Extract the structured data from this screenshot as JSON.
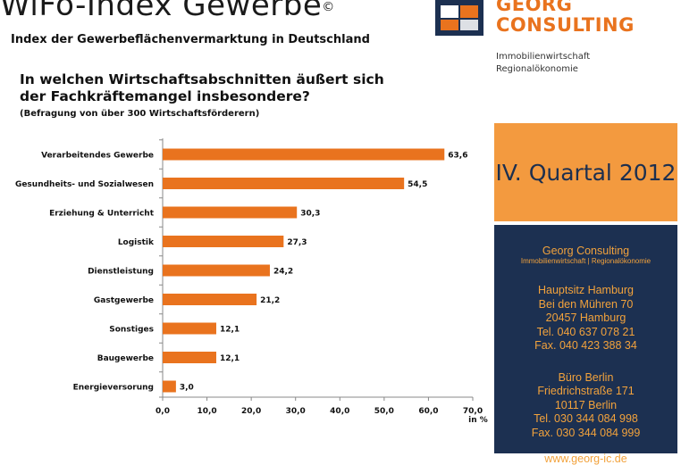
{
  "header": {
    "title": "WiFö-Index Gewerbe",
    "title_mark": "©",
    "subtitle": "Index der Gewerbeflächenvermarktung in Deutschland"
  },
  "logo": {
    "line1": "GEORG",
    "line2": "CONSULTING",
    "sub1": "Immobilienwirtschaft",
    "sub2": "Regionalökonomie"
  },
  "question": {
    "text": "In welchen Wirtschaftsabschnitten  äußert sich der Fachkräftemangel insbesondere?",
    "note": "(Befragung von über 300 Wirtschaftsförderern)"
  },
  "quarter": "IV. Quartal 2012",
  "contact": {
    "company": "Georg Consulting",
    "tagline": "Immobilienwirtschaft | Regionalökonomie",
    "office1": {
      "name": "Hauptsitz Hamburg",
      "street": "Bei den Mühren 70",
      "city": "20457 Hamburg",
      "phone": "Tel. 040 637 078 21",
      "fax": "Fax. 040 423 388 34"
    },
    "office2": {
      "name": "Büro Berlin",
      "street": "Friedrichstraße 171",
      "city": "10117 Berlin",
      "phone": "Tel. 030 344 084 998",
      "fax": "Fax. 030 344 084 999"
    },
    "web": "www.georg-ic.de"
  },
  "colors": {
    "bar": "#e9731e",
    "quarter_bg": "#f39a3f",
    "info_bg": "#1c3051",
    "info_text": "#f2a23c",
    "logo_orange": "#e9731e",
    "logo_blue": "#1c3051"
  },
  "chart_data": {
    "type": "bar",
    "orientation": "horizontal",
    "categories": [
      "Verarbeitendes  Gewerbe",
      "Gesundheits- und Sozialwesen",
      "Erziehung & Unterricht",
      "Logistik",
      "Dienstleistung",
      "Gastgewerbe",
      "Sonstiges",
      "Baugewerbe",
      "Energieversorung"
    ],
    "values": [
      63.6,
      54.5,
      30.3,
      27.3,
      24.2,
      21.2,
      12.1,
      12.1,
      3.0
    ],
    "value_labels": [
      "63,6",
      "54,5",
      "30,3",
      "27,3",
      "24,2",
      "21,2",
      "12,1",
      "12,1",
      "3,0"
    ],
    "xlim": [
      0,
      70
    ],
    "ticks": [
      0,
      10,
      20,
      30,
      40,
      50,
      60,
      70
    ],
    "tick_labels": [
      "0,0",
      "10,0",
      "20,0",
      "30,0",
      "40,0",
      "50,0",
      "60,0",
      "70,0"
    ],
    "xunit": "in %",
    "grid": false
  }
}
